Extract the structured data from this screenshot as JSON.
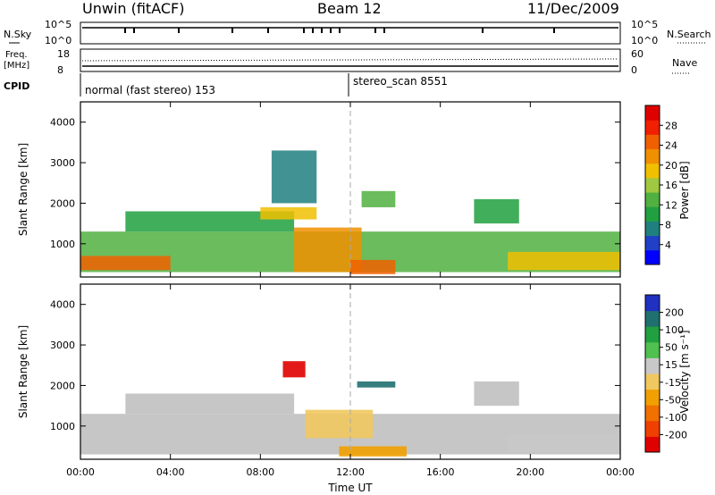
{
  "header": {
    "station": "Unwin (fitACF)",
    "beam": "Beam 12",
    "date": "11/Dec/2009"
  },
  "summary_panels": {
    "nsky_label": "N.Sky",
    "nsky_ticks": [
      "10^5",
      "10^0"
    ],
    "nsearch_label": "N.Search",
    "nsearch_ticks": [
      "10^5",
      "10^0"
    ],
    "freq_label": "Freq.",
    "freq_unit": "[MHz]",
    "freq_ticks": [
      "18",
      "8"
    ],
    "nave_label": "Nave",
    "nave_ticks": [
      "60",
      "0"
    ],
    "cpid_label": "CPID",
    "cpid_entries": [
      {
        "text": "normal (fast stereo) 153",
        "start": "00:00"
      },
      {
        "text": "stereo_scan 8551",
        "start": "12:00"
      }
    ]
  },
  "colors": {
    "power_scale": [
      "#0000ff",
      "#2040c8",
      "#208080",
      "#20a040",
      "#50b040",
      "#a0c840",
      "#f0c000",
      "#f09000",
      "#f06000",
      "#f02000",
      "#e00000"
    ],
    "velocity_scale": [
      "#e00000",
      "#f04000",
      "#f07000",
      "#f0a000",
      "#f0c860",
      "#c8c8c8",
      "#50c050",
      "#20a040",
      "#207070",
      "#2030c0"
    ],
    "ground_scatter": "#c0c0c0",
    "marker_line": "#999999"
  },
  "chart_data": [
    {
      "type": "heatmap",
      "panel": "power",
      "ylabel": "Slant Range [km]",
      "ylim": [
        180,
        4500
      ],
      "yticks": [
        "1000",
        "2000",
        "3000",
        "4000"
      ],
      "xlim": [
        "00:00",
        "24:00"
      ],
      "colorbar_label": "Power [dB]",
      "colorbar_ticks": [
        "4",
        "8",
        "12",
        "16",
        "20",
        "24",
        "28"
      ],
      "colorbar_range": [
        0,
        32
      ],
      "regions": [
        {
          "time_start": 0.0,
          "time_end": 24.0,
          "range_from": 300,
          "range_to": 1300,
          "value": 12
        },
        {
          "time_start": 2.0,
          "time_end": 9.5,
          "range_from": 1300,
          "range_to": 1800,
          "value": 10
        },
        {
          "time_start": 8.0,
          "time_end": 10.5,
          "range_from": 1600,
          "range_to": 1900,
          "value": 18
        },
        {
          "time_start": 9.5,
          "time_end": 12.5,
          "range_from": 300,
          "range_to": 1400,
          "value": 22
        },
        {
          "time_start": 12.0,
          "time_end": 14.0,
          "range_from": 250,
          "range_to": 600,
          "value": 26
        },
        {
          "time_start": 8.5,
          "time_end": 10.5,
          "range_from": 2000,
          "range_to": 3300,
          "value": 8
        },
        {
          "time_start": 12.5,
          "time_end": 14.0,
          "range_from": 1900,
          "range_to": 2300,
          "value": 14
        },
        {
          "time_start": 17.5,
          "time_end": 19.5,
          "range_from": 1500,
          "range_to": 2100,
          "value": 10
        },
        {
          "time_start": 0.0,
          "time_end": 4.0,
          "range_from": 350,
          "range_to": 700,
          "value": 24
        },
        {
          "time_start": 19.0,
          "time_end": 24.0,
          "range_from": 350,
          "range_to": 800,
          "value": 20
        }
      ]
    },
    {
      "type": "heatmap",
      "panel": "velocity",
      "ylabel": "Slant Range [km]",
      "xlabel": "Time UT",
      "ylim": [
        180,
        4500
      ],
      "yticks": [
        "1000",
        "2000",
        "3000",
        "4000"
      ],
      "xticks": [
        "00:00",
        "04:00",
        "08:00",
        "12:00",
        "16:00",
        "20:00",
        "00:00"
      ],
      "xlim": [
        "00:00",
        "24:00"
      ],
      "colorbar_label": "Velocity [m s⁻¹]",
      "colorbar_ticks": [
        "-200",
        "-100",
        "-50",
        "-15",
        "15",
        "50",
        "100",
        "200"
      ],
      "colorbar_range": [
        -250,
        250
      ],
      "regions": [
        {
          "time_start": 0.0,
          "time_end": 24.0,
          "range_from": 300,
          "range_to": 1300,
          "value": 0
        },
        {
          "time_start": 2.0,
          "time_end": 9.5,
          "range_from": 1300,
          "range_to": 1800,
          "value": 0
        },
        {
          "time_start": 10.0,
          "time_end": 13.0,
          "range_from": 700,
          "range_to": 1400,
          "value": -40
        },
        {
          "time_start": 11.5,
          "time_end": 14.5,
          "range_from": 250,
          "range_to": 500,
          "value": -60
        },
        {
          "time_start": 9.0,
          "time_end": 10.0,
          "range_from": 2200,
          "range_to": 2600,
          "value": -220
        },
        {
          "time_start": 12.3,
          "time_end": 14.0,
          "range_from": 1950,
          "range_to": 2100,
          "value": 180
        },
        {
          "time_start": 17.5,
          "time_end": 19.5,
          "range_from": 1500,
          "range_to": 2100,
          "value": 0
        },
        {
          "time_start": 19.0,
          "time_end": 24.0,
          "range_from": 350,
          "range_to": 800,
          "value": 20
        }
      ]
    }
  ]
}
